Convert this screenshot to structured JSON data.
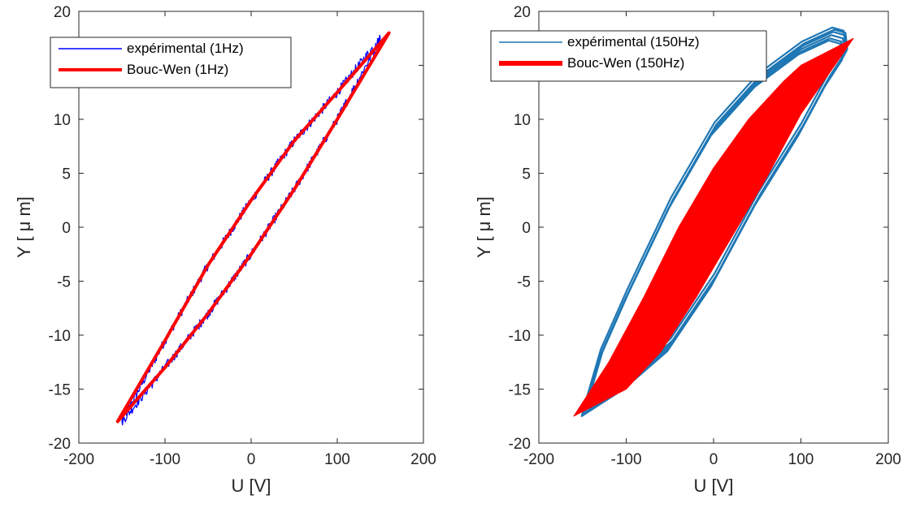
{
  "chart_data": [
    {
      "type": "line",
      "xlabel": "U [V]",
      "ylabel": "Y [ μ m]",
      "xlim": [
        -200,
        200
      ],
      "ylim": [
        -20,
        20
      ],
      "xticks": [
        -200,
        -100,
        0,
        100,
        200
      ],
      "yticks": [
        -20,
        -15,
        -10,
        -5,
        0,
        5,
        10,
        15,
        20
      ],
      "grid": false,
      "legend_position": "top-left",
      "series": [
        {
          "name": "expérimental (1Hz)",
          "color": "#0000ff",
          "style": "noisy-hysteresis-loop",
          "upper_branch": [
            [
              -150,
              -18
            ],
            [
              -100,
              -10.5
            ],
            [
              -50,
              -3.5
            ],
            [
              0,
              2.5
            ],
            [
              50,
              8
            ],
            [
              100,
              12.5
            ],
            [
              150,
              17.5
            ]
          ],
          "lower_branch": [
            [
              -150,
              -18
            ],
            [
              -100,
              -13
            ],
            [
              -50,
              -8
            ],
            [
              0,
              -2.5
            ],
            [
              50,
              3.5
            ],
            [
              100,
              10
            ],
            [
              150,
              17.5
            ]
          ]
        },
        {
          "name": "Bouc-Wen (1Hz)",
          "color": "#ff0000",
          "style": "thick-hysteresis-loop",
          "upper_branch": [
            [
              -155,
              -18
            ],
            [
              -100,
              -10.5
            ],
            [
              -50,
              -3.5
            ],
            [
              0,
              2.5
            ],
            [
              50,
              8
            ],
            [
              100,
              12.5
            ],
            [
              160,
              18
            ]
          ],
          "lower_branch": [
            [
              -155,
              -18
            ],
            [
              -100,
              -13
            ],
            [
              -50,
              -8
            ],
            [
              0,
              -2.5
            ],
            [
              50,
              3.5
            ],
            [
              100,
              10
            ],
            [
              160,
              18
            ]
          ]
        }
      ]
    },
    {
      "type": "line",
      "xlabel": "U [V]",
      "ylabel": "Y [ μ m]",
      "xlim": [
        -200,
        200
      ],
      "ylim": [
        -20,
        20
      ],
      "xticks": [
        -200,
        -100,
        0,
        100,
        200
      ],
      "yticks": [
        -20,
        -15,
        -10,
        -5,
        0,
        5,
        10,
        15,
        20
      ],
      "grid": false,
      "legend_position": "top-left",
      "series": [
        {
          "name": "expérimental (150Hz)",
          "color": "#1f77b4",
          "style": "multi-cycle-loop",
          "upper_branch": [
            [
              -148,
              -17
            ],
            [
              -130,
              -12
            ],
            [
              -100,
              -6.5
            ],
            [
              -50,
              2
            ],
            [
              0,
              9
            ],
            [
              50,
              13.5
            ],
            [
              100,
              16.5
            ],
            [
              135,
              17.8
            ],
            [
              148,
              17.5
            ],
            [
              150,
              16
            ]
          ],
          "lower_branch": [
            [
              -148,
              -17
            ],
            [
              -100,
              -14.5
            ],
            [
              -50,
              -11
            ],
            [
              0,
              -5
            ],
            [
              50,
              2.5
            ],
            [
              100,
              9
            ],
            [
              130,
              13.5
            ],
            [
              150,
              16
            ]
          ]
        },
        {
          "name": "Bouc-Wen (150Hz)",
          "color": "#ff0000",
          "style": "filled-region",
          "upper_branch": [
            [
              -160,
              -17.5
            ],
            [
              -120,
              -12.5
            ],
            [
              -80,
              -6.5
            ],
            [
              -40,
              0
            ],
            [
              0,
              5.5
            ],
            [
              40,
              10
            ],
            [
              80,
              13.5
            ],
            [
              100,
              15
            ],
            [
              160,
              17.5
            ]
          ],
          "lower_branch": [
            [
              -160,
              -17.5
            ],
            [
              -100,
              -15
            ],
            [
              -60,
              -11.5
            ],
            [
              -20,
              -6.5
            ],
            [
              20,
              -1
            ],
            [
              60,
              4.5
            ],
            [
              100,
              10.5
            ],
            [
              160,
              17.5
            ]
          ]
        }
      ]
    }
  ]
}
